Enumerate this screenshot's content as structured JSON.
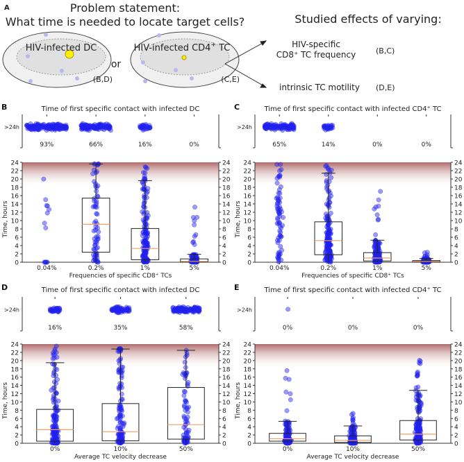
{
  "panel_a": {
    "letter": "A",
    "title_line1": "Problem statement:",
    "title_line2": "What time is needed to locate target cells?",
    "cell1_label": "HIV-infected DC",
    "or_label": "or",
    "cell2_label": "HIV-infected CD4",
    "cell2_sup": "+",
    "cell2_suffix": " TC",
    "cell1_ref": "(B,D)",
    "cell2_ref": "(C,E)",
    "studied_title": "Studied effects of varying:",
    "effect1_line1": "HIV-specific",
    "effect1_line2": "CD8⁺ TC frequency",
    "effect1_ref": "(B,C)",
    "effect2": "intrinsic TC motility",
    "effect2_ref": "(D,E)",
    "colors": {
      "target": "#ffee00",
      "tcell": "#b8b8f0",
      "outer": "#f0f0f0",
      "inner": "#e2e2e2"
    }
  },
  "chart_data": [
    {
      "panel": "B",
      "type": "box+strip",
      "title": "Time of first specific contact with infected DC",
      "xlabel": "Frequencies of specific CD8⁺ TCs",
      "ylabel": "Time, hours",
      "ylim": [
        0,
        24
      ],
      "yticks": [
        0,
        2,
        4,
        6,
        8,
        10,
        12,
        14,
        16,
        18,
        20,
        22,
        24
      ],
      "strip_label": ">24h",
      "categories": [
        "0.04%",
        "0.2%",
        "1%",
        "5%"
      ],
      "percent_over_24h": [
        "93%",
        "66%",
        "16%",
        "0%"
      ],
      "approx_points_total": 200,
      "boxes": [
        {
          "max": 20.5,
          "box": null
        },
        {
          "q1": 2.4,
          "median": 9.1,
          "q3": 15.4,
          "whisker_low": 0,
          "whisker_high": 23.6,
          "max": 23.6,
          "box": true
        },
        {
          "q1": 0.6,
          "median": 3.3,
          "q3": 8.1,
          "whisker_low": 0,
          "whisker_high": 19.6,
          "max": 23.6,
          "box": true
        },
        {
          "q1": 0.1,
          "median": 0.2,
          "q3": 0.8,
          "whisker_low": 0,
          "whisker_high": 1.9,
          "max": 17.2,
          "box": true
        }
      ]
    },
    {
      "panel": "C",
      "type": "box+strip",
      "title": "Time of first specific contact with infected CD4⁺ TC",
      "xlabel": "Frequencies of specific CD8⁺ TCs",
      "ylabel": "Time, hours",
      "ylim": [
        0,
        24
      ],
      "yticks": [
        0,
        2,
        4,
        6,
        8,
        10,
        12,
        14,
        16,
        18,
        20,
        22,
        24
      ],
      "strip_label": ">24h",
      "categories": [
        "0.04%",
        "0.2%",
        "1%",
        "5%"
      ],
      "percent_over_24h": [
        "65%",
        "14%",
        "0%",
        "0%"
      ],
      "approx_points_total": 200,
      "boxes": [
        {
          "q1": 4.0,
          "median": 10.5,
          "q3": 16.0,
          "max": 23.5,
          "box": null
        },
        {
          "q1": 1.8,
          "median": 5.2,
          "q3": 9.7,
          "whisker_low": 0,
          "whisker_high": 21.4,
          "max": 23.5,
          "box": true
        },
        {
          "q1": 0.3,
          "median": 1.0,
          "q3": 2.3,
          "whisker_low": 0,
          "whisker_high": 5.3,
          "max": 18.0,
          "box": true
        },
        {
          "q1": 0.1,
          "median": 0.2,
          "q3": 0.4,
          "whisker_low": 0,
          "whisker_high": 0.9,
          "max": 2.5,
          "box": true
        }
      ]
    },
    {
      "panel": "D",
      "type": "box+strip",
      "title": "Time of first specific contact with infected DC",
      "xlabel": "Average TC velocity decrease",
      "ylabel": "Time, hours",
      "ylim": [
        0,
        24
      ],
      "yticks": [
        0,
        2,
        4,
        6,
        8,
        10,
        12,
        14,
        16,
        18,
        20,
        22,
        24
      ],
      "strip_label": ">24h",
      "categories": [
        "0%",
        "10%",
        "50%"
      ],
      "percent_over_24h": [
        "16%",
        "35%",
        "58%"
      ],
      "approx_points_total": 200,
      "boxes": [
        {
          "q1": 0.5,
          "median": 3.3,
          "q3": 8.2,
          "whisker_low": 0,
          "whisker_high": 19.5,
          "max": 23.5,
          "box": true
        },
        {
          "q1": 0.6,
          "median": 2.8,
          "q3": 9.6,
          "whisker_low": 0,
          "whisker_high": 22.8,
          "max": 23.0,
          "box": true
        },
        {
          "q1": 1.0,
          "median": 4.5,
          "q3": 13.5,
          "whisker_low": 0,
          "whisker_high": 22.5,
          "max": 22.5,
          "box": true
        }
      ]
    },
    {
      "panel": "E",
      "type": "box+strip",
      "title": "Time of first specific contact with infected CD4⁺ TC",
      "xlabel": "Average TC velocity decrease",
      "ylabel": "Time, hours",
      "ylim": [
        0,
        24
      ],
      "yticks": [
        0,
        2,
        4,
        6,
        8,
        10,
        12,
        14,
        16,
        18,
        20,
        22,
        24
      ],
      "strip_label": ">24h",
      "categories": [
        "0%",
        "10%",
        "50%"
      ],
      "percent_over_24h": [
        "0%",
        "0%",
        "0%"
      ],
      "strip_points": [
        1,
        0,
        0
      ],
      "approx_points_total": 200,
      "boxes": [
        {
          "q1": 0.5,
          "median": 1.1,
          "q3": 2.4,
          "whisker_low": 0,
          "whisker_high": 5.3,
          "max": 18.4,
          "box": true
        },
        {
          "q1": 0.2,
          "median": 0.7,
          "q3": 1.8,
          "whisker_low": 0,
          "whisker_high": 4.2,
          "max": 10.5,
          "box": true
        },
        {
          "q1": 0.8,
          "median": 2.2,
          "q3": 5.5,
          "whisker_low": 0,
          "whisker_high": 12.8,
          "max": 20.9,
          "box": true
        }
      ]
    }
  ],
  "style": {
    "point": "#2222ee",
    "median": "#f0a060",
    "band": "#b06a6a"
  }
}
